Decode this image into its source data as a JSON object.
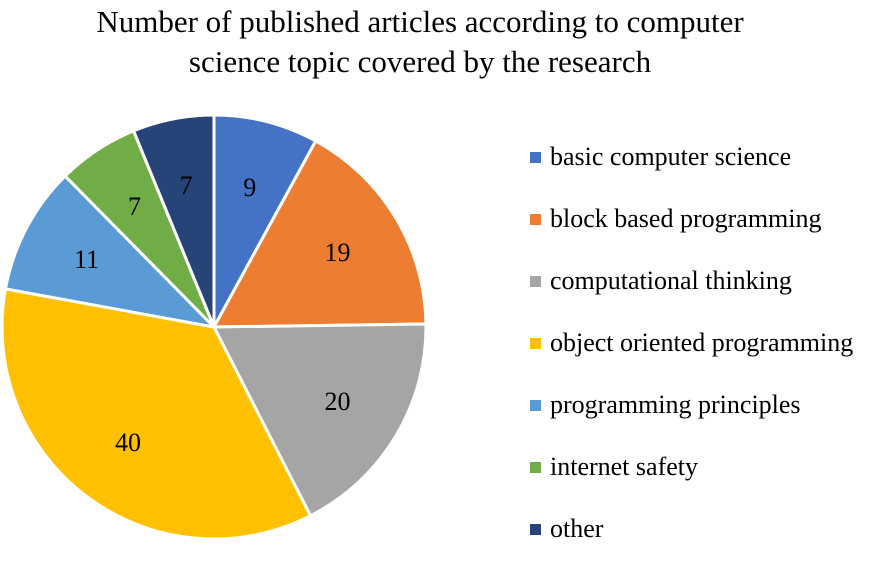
{
  "chart_data": {
    "type": "pie",
    "title_lines": [
      "Number of published articles according to computer",
      "science topic covered by the research"
    ],
    "slices": [
      {
        "label": "basic computer science",
        "value": 9,
        "color": "#4472C4"
      },
      {
        "label": "block based programming",
        "value": 19,
        "color": "#ED7D31"
      },
      {
        "label": "computational thinking",
        "value": 20,
        "color": "#A5A5A5"
      },
      {
        "label": "object oriented programming",
        "value": 40,
        "color": "#FFC000"
      },
      {
        "label": "programming principles",
        "value": 11,
        "color": "#5B9BD5"
      },
      {
        "label": "internet safety",
        "value": 7,
        "color": "#70AD47"
      },
      {
        "label": "other",
        "value": 7,
        "color": "#264478"
      }
    ],
    "legend_position": "right",
    "data_labels": true
  }
}
